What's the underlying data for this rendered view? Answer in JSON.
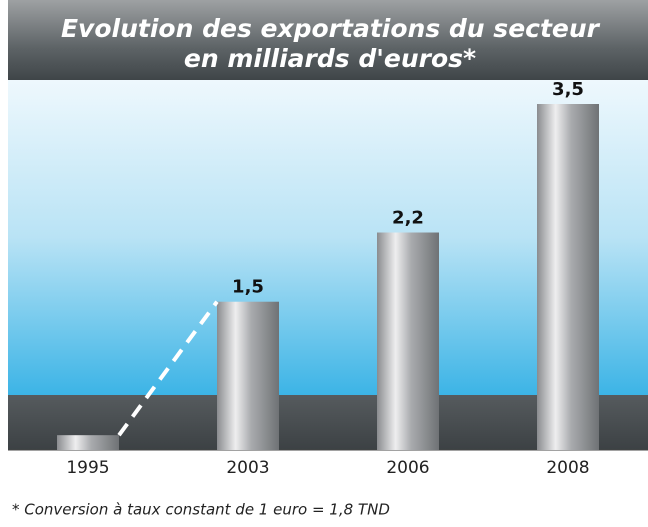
{
  "chart_data": {
    "type": "bar",
    "title": [
      "Evolution des exportations du secteur",
      "en milliards d'euros*"
    ],
    "categories": [
      "1995",
      "2003",
      "2006",
      "2008"
    ],
    "values": [
      0.15,
      1.5,
      2.2,
      3.5
    ],
    "value_labels": [
      null,
      "1,5",
      "2,2",
      "3,5"
    ],
    "note": "* Conversion à taux constant de 1 euro = 1,8 TND"
  }
}
